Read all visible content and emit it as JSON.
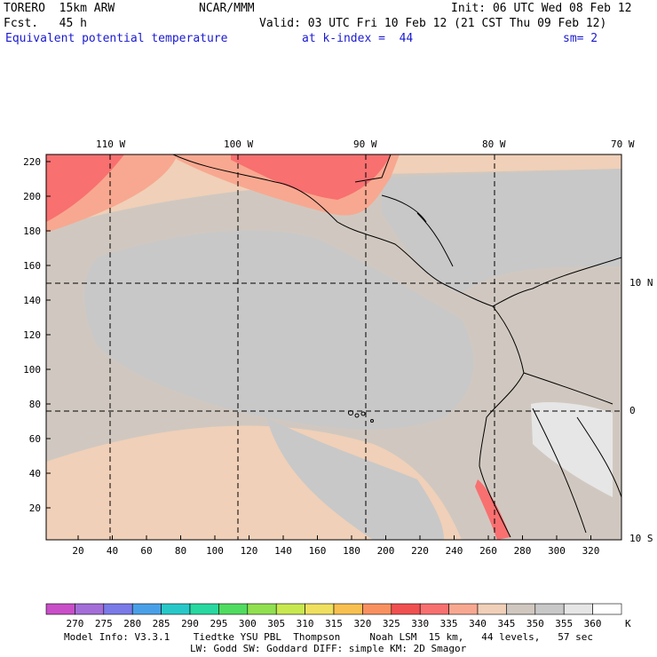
{
  "header": {
    "model": "TORERO  15km ARW",
    "org": "NCAR/MMM",
    "init": "Init: 06 UTC Wed 08 Feb 12",
    "fcst": "Fcst.   45 h",
    "valid": "Valid: 03 UTC Fri 10 Feb 12 (21 CST Thu 09 Feb 12)",
    "field": "Equivalent potential temperature",
    "level": "at k-index =  44",
    "smooth": "sm= 2"
  },
  "map": {
    "top_lon_labels": [
      "110 W",
      "100 W",
      "90 W",
      "80 W",
      "70 W"
    ],
    "right_lat_labels": [
      "10 N",
      "0",
      "10 S"
    ],
    "y_ticks": [
      "220",
      "200",
      "180",
      "160",
      "140",
      "120",
      "100",
      "80",
      "60",
      "40",
      "20"
    ],
    "x_ticks": [
      "20",
      "40",
      "60",
      "80",
      "100",
      "120",
      "140",
      "160",
      "180",
      "200",
      "220",
      "240",
      "260",
      "280",
      "300",
      "320"
    ],
    "land_color": "#b4b4b4",
    "grid_style": "dashed"
  },
  "colorbar": {
    "labels": [
      "270",
      "275",
      "280",
      "285",
      "290",
      "295",
      "300",
      "305",
      "310",
      "315",
      "320",
      "325",
      "330",
      "335",
      "340",
      "345",
      "350",
      "355",
      "360"
    ],
    "unit": "K",
    "colors": [
      "#c84fc8",
      "#a36ed8",
      "#7a7ae8",
      "#4aa0e8",
      "#28c8c8",
      "#28d8a0",
      "#50dc60",
      "#90e050",
      "#c8e850",
      "#f0e060",
      "#f8c050",
      "#f89060",
      "#f05050",
      "#f87070",
      "#f8a890",
      "#f0d0b8",
      "#d0c8c0",
      "#c8c8c8",
      "#e6e6e6",
      "#ffffff"
    ]
  },
  "footer": {
    "line1": "Model Info: V3.3.1    Tiedtke YSU PBL  Thompson     Noah LSM  15 km,   44 levels,   57 sec",
    "line2": "LW: Godd SW: Goddard DIFF: simple KM: 2D Smagor"
  }
}
